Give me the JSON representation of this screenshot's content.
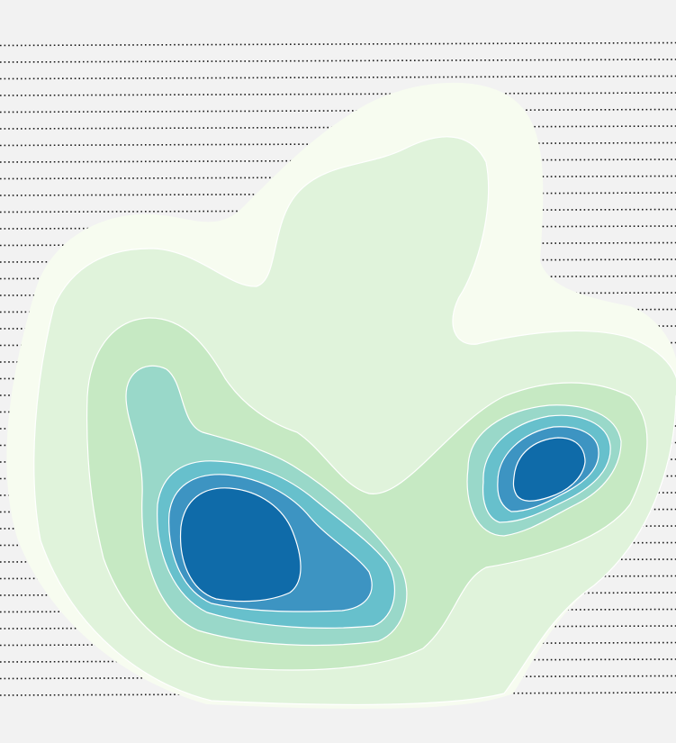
{
  "chart_data": {
    "type": "contour",
    "title": "",
    "xlabel": "",
    "ylabel": "",
    "grid": true,
    "grid_style": "dotted horizontal lines",
    "background_color": "#f2f2f2",
    "level_colors": [
      "#f7fcf0",
      "#e0f3db",
      "#c6e9c3",
      "#99d8c9",
      "#67c0cc",
      "#3d94c2",
      "#0f6ba9"
    ],
    "levels": [
      1,
      2,
      3,
      4,
      5,
      6,
      7
    ],
    "peaks": [
      {
        "name": "",
        "level_max": 7
      },
      {
        "name": "",
        "level_max": 7
      }
    ]
  }
}
